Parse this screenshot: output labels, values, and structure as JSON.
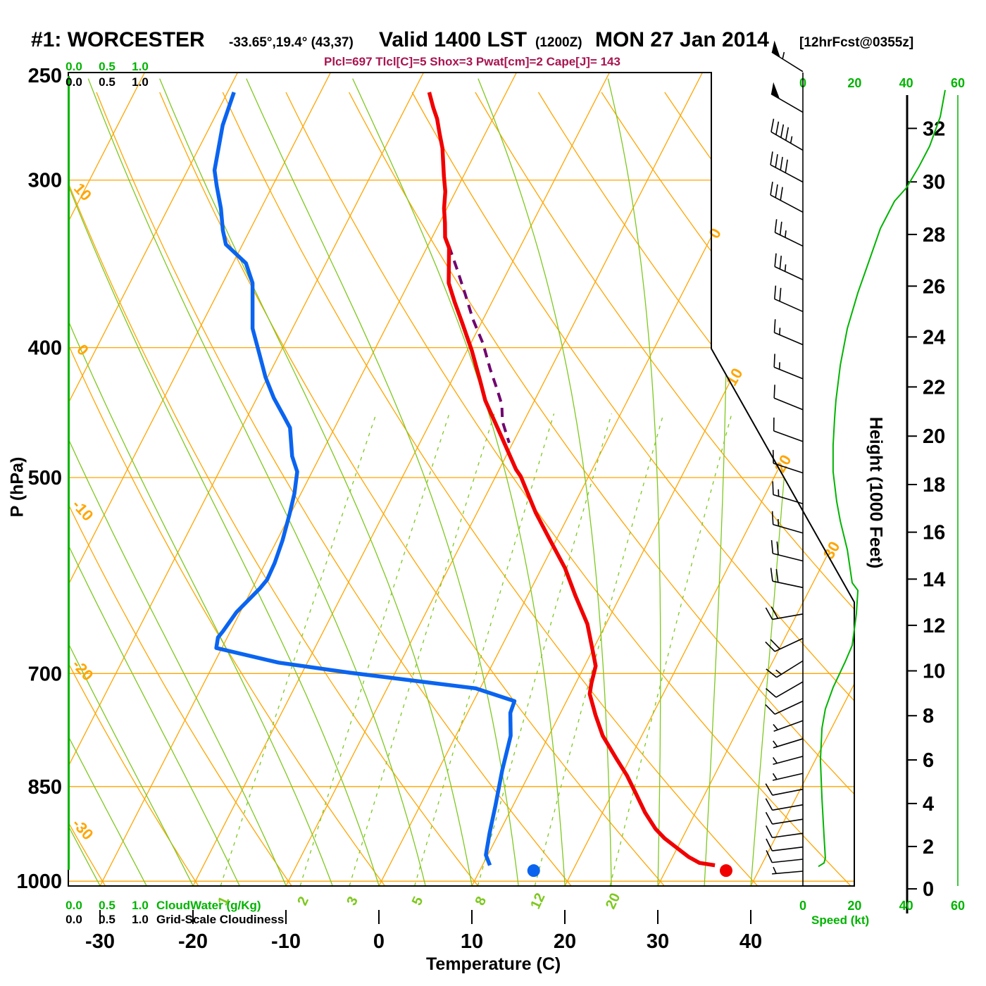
{
  "header": {
    "station": "#1: WORCESTER",
    "coords": "-33.65°,19.4° (43,37)",
    "valid": "Valid 1400 LST",
    "valid_z": "(1200Z)",
    "date": "MON 27 Jan 2014",
    "fcst": "[12hrFcst@0355z]",
    "indices": "Plcl=697 Tlcl[C]=5 Shox=3 Pwat[cm]=2 Cape[J]= 143"
  },
  "axes": {
    "pressure_label": "P (hPa)",
    "pressure_ticks": [
      250,
      300,
      400,
      500,
      700,
      850,
      1000
    ],
    "temp_label": "Temperature (C)",
    "temp_ticks": [
      -30,
      -20,
      -10,
      0,
      10,
      20,
      30,
      40
    ],
    "height_label": "Height (1000 Feet)",
    "height_ticks": [
      0,
      2,
      4,
      6,
      8,
      10,
      12,
      14,
      16,
      18,
      20,
      22,
      24,
      26,
      28,
      30,
      32
    ],
    "speed_label": "Speed (kt)",
    "speed_ticks": [
      0,
      20,
      40,
      60
    ],
    "cloudwater_label": "CloudWater (g/Kg)",
    "cloudwater_ticks": [
      "0.0",
      "0.5",
      "1.0"
    ],
    "cloudiness_label": "Grid-Scale Cloudiness",
    "cloudiness_ticks": [
      "0.0",
      "0.5",
      "1.0"
    ],
    "isotherm_edge_labels": [
      0,
      10,
      20,
      30
    ],
    "dry_adiabat_labels": [
      10,
      0,
      -10,
      -20,
      -30
    ],
    "mixing_ratio_labels": [
      1,
      2,
      3,
      5,
      8,
      12,
      20
    ]
  },
  "chart_data": {
    "type": "skewt-log-p",
    "pressure_range_hpa": [
      250,
      1008
    ],
    "temp_axis_range_c": [
      -33,
      44
    ],
    "temperature_profile_p_c": [
      [
        258,
        -38.3
      ],
      [
        265,
        -37.0
      ],
      [
        270,
        -36.0
      ],
      [
        277,
        -34.9
      ],
      [
        284,
        -33.8
      ],
      [
        298,
        -32.1
      ],
      [
        306,
        -31.1
      ],
      [
        315,
        -30.3
      ],
      [
        323,
        -29.4
      ],
      [
        331,
        -28.6
      ],
      [
        337,
        -27.6
      ],
      [
        358,
        -25.7
      ],
      [
        370,
        -24.0
      ],
      [
        383,
        -22.1
      ],
      [
        402,
        -19.5
      ],
      [
        422,
        -17.1
      ],
      [
        438,
        -15.3
      ],
      [
        465,
        -11.7
      ],
      [
        493,
        -8.2
      ],
      [
        499,
        -7.3
      ],
      [
        531,
        -3.7
      ],
      [
        557,
        -0.6
      ],
      [
        584,
        2.5
      ],
      [
        613,
        5.2
      ],
      [
        643,
        8.0
      ],
      [
        674,
        10.1
      ],
      [
        691,
        11.2
      ],
      [
        712,
        11.7
      ],
      [
        725,
        12.1
      ],
      [
        752,
        13.9
      ],
      [
        779,
        15.8
      ],
      [
        811,
        18.6
      ],
      [
        834,
        20.6
      ],
      [
        861,
        22.6
      ],
      [
        889,
        24.6
      ],
      [
        914,
        26.6
      ],
      [
        929,
        28.1
      ],
      [
        944,
        29.9
      ],
      [
        959,
        31.7
      ],
      [
        969,
        33.2
      ],
      [
        973,
        35.0
      ]
    ],
    "dewpoint_profile_p_c": [
      [
        258,
        -59.3
      ],
      [
        273,
        -58.7
      ],
      [
        295,
        -57.1
      ],
      [
        303,
        -56.0
      ],
      [
        315,
        -54.3
      ],
      [
        327,
        -52.9
      ],
      [
        335,
        -51.8
      ],
      [
        346,
        -48.6
      ],
      [
        358,
        -46.8
      ],
      [
        387,
        -44.3
      ],
      [
        404,
        -42.2
      ],
      [
        421,
        -40.2
      ],
      [
        436,
        -38.2
      ],
      [
        450,
        -36.1
      ],
      [
        459,
        -34.8
      ],
      [
        482,
        -33.0
      ],
      [
        495,
        -31.6
      ],
      [
        514,
        -30.7
      ],
      [
        532,
        -30.1
      ],
      [
        557,
        -29.4
      ],
      [
        579,
        -29.0
      ],
      [
        596,
        -28.9
      ],
      [
        605,
        -29.2
      ],
      [
        630,
        -30.4
      ],
      [
        651,
        -30.8
      ],
      [
        658,
        -31.0
      ],
      [
        670,
        -30.6
      ],
      [
        687,
        -23.1
      ],
      [
        699,
        -14.9
      ],
      [
        709,
        -7.3
      ],
      [
        718,
        -0.5
      ],
      [
        734,
        4.4
      ],
      [
        749,
        4.6
      ],
      [
        779,
        5.9
      ],
      [
        827,
        6.9
      ],
      [
        878,
        8.1
      ],
      [
        921,
        9.0
      ],
      [
        956,
        9.8
      ],
      [
        973,
        10.8
      ]
    ],
    "parcel_path_p_c": [
      [
        336,
        -27.7
      ],
      [
        350,
        -25.5
      ],
      [
        365,
        -23.3
      ],
      [
        381,
        -21.1
      ],
      [
        397,
        -18.7
      ],
      [
        415,
        -16.5
      ],
      [
        430,
        -14.6
      ],
      [
        441,
        -13.3
      ],
      [
        454,
        -12.3
      ],
      [
        471,
        -10.4
      ]
    ],
    "surface": {
      "pressure_hpa": 982,
      "temp_c": 36.5,
      "dewpoint_c": 15.8
    },
    "wind_speed_profile_p_kt": [
      [
        975,
        6.0
      ],
      [
        969,
        8.2
      ],
      [
        961,
        8.7
      ],
      [
        927,
        8.2
      ],
      [
        868,
        7.4
      ],
      [
        812,
        6.8
      ],
      [
        769,
        7.4
      ],
      [
        744,
        8.7
      ],
      [
        717,
        11.7
      ],
      [
        686,
        16.4
      ],
      [
        667,
        19.1
      ],
      [
        632,
        20.7
      ],
      [
        607,
        21.3
      ],
      [
        599,
        19.1
      ],
      [
        566,
        17.2
      ],
      [
        539,
        14.5
      ],
      [
        521,
        13.1
      ],
      [
        495,
        11.7
      ],
      [
        473,
        11.7
      ],
      [
        451,
        12.3
      ],
      [
        438,
        12.8
      ],
      [
        412,
        14.5
      ],
      [
        387,
        17.2
      ],
      [
        364,
        21.3
      ],
      [
        347,
        25.1
      ],
      [
        326,
        30.0
      ],
      [
        311,
        35.5
      ],
      [
        304,
        40.1
      ],
      [
        293,
        45.0
      ],
      [
        283,
        49.1
      ],
      [
        269,
        53.2
      ],
      [
        257,
        55.1
      ]
    ],
    "wind_barbs_p_kt_ang": [
      [
        249,
        55,
        148
      ],
      [
        267,
        50,
        150
      ],
      [
        285,
        45,
        150
      ],
      [
        301,
        40,
        152
      ],
      [
        317,
        30,
        152
      ],
      [
        336,
        25,
        154
      ],
      [
        356,
        25,
        155
      ],
      [
        376,
        20,
        156
      ],
      [
        398,
        15,
        157
      ],
      [
        422,
        15,
        158
      ],
      [
        445,
        10,
        158
      ],
      [
        470,
        10,
        160
      ],
      [
        496,
        10,
        162
      ],
      [
        523,
        15,
        163
      ],
      [
        550,
        15,
        164
      ],
      [
        577,
        20,
        166
      ],
      [
        604,
        20,
        168
      ],
      [
        632,
        20,
        190
      ],
      [
        659,
        20,
        205
      ],
      [
        685,
        15,
        212
      ],
      [
        710,
        10,
        210
      ],
      [
        734,
        10,
        205
      ],
      [
        759,
        7,
        200
      ],
      [
        783,
        7,
        197
      ],
      [
        807,
        7,
        195
      ],
      [
        831,
        7,
        193
      ],
      [
        854,
        8,
        191
      ],
      [
        877,
        8,
        190
      ],
      [
        899,
        8,
        189
      ],
      [
        921,
        8,
        188
      ],
      [
        943,
        8,
        187
      ],
      [
        963,
        8,
        186
      ],
      [
        983,
        7,
        185
      ]
    ],
    "cloudwater_profile_gkg": 0,
    "grid_scale_cloudiness": 0,
    "isotherms_c": {
      "min": -100,
      "max": 40,
      "step": 10
    },
    "dry_adiabats_c": {
      "min": -40,
      "max": 130,
      "step": 10
    },
    "moist_adiabats_c": {
      "min": -40,
      "max": 40,
      "step": 5
    },
    "mixing_ratio_gkg": [
      1,
      2,
      3,
      5,
      8,
      12,
      20
    ]
  },
  "colors": {
    "isoline_orange": "#ffa500",
    "axis_green": "#00b400",
    "line_green": "#7dc81e",
    "temp_red": "#f00000",
    "dewpoint_blue": "#0a64f0",
    "parcel_purple": "#70006e",
    "subtitle_magenta": "#a81450",
    "black": "#000000"
  }
}
